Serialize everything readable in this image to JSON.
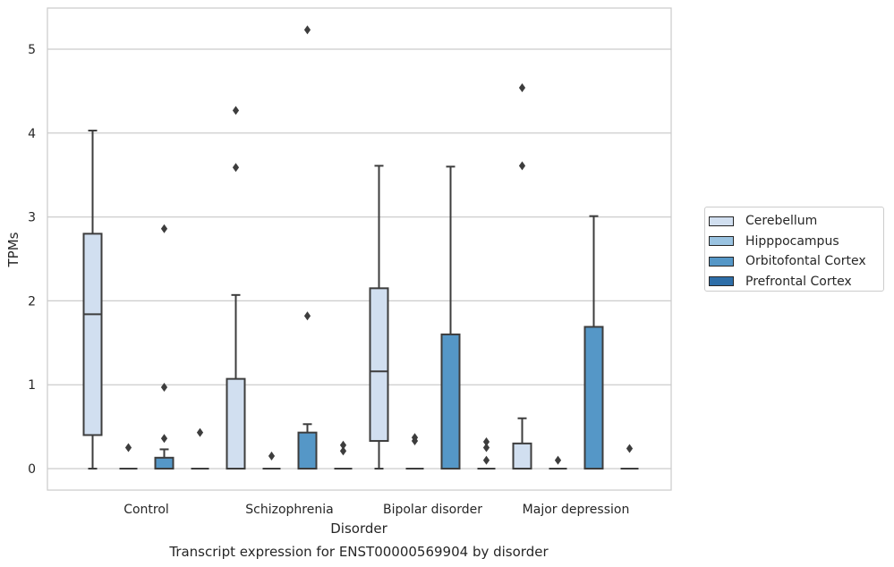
{
  "chart_data": {
    "type": "box",
    "title": "Transcript expression for ENST00000569904 by disorder",
    "xlabel": "Disorder",
    "ylabel": "TPMs",
    "ylim": [
      -0.25,
      5.5
    ],
    "yticks": [
      0,
      1,
      2,
      3,
      4,
      5
    ],
    "grid": "horizontal",
    "legend_position": "right",
    "categories": [
      "Control",
      "Schizophrenia",
      "Bipolar disorder",
      "Major depression"
    ],
    "series": [
      {
        "name": "Cerebellum",
        "color": "#d1dff0",
        "boxes": [
          {
            "whisker_low": 0,
            "q1": 0.4,
            "median": 1.84,
            "q3": 2.8,
            "whisker_high": 4.03,
            "outliers": []
          },
          {
            "whisker_low": 0,
            "q1": 0,
            "median": 0,
            "q3": 1.07,
            "whisker_high": 2.07,
            "outliers": [
              3.59,
              4.27
            ]
          },
          {
            "whisker_low": 0,
            "q1": 0.33,
            "median": 1.16,
            "q3": 2.15,
            "whisker_high": 3.61,
            "outliers": []
          },
          {
            "whisker_low": 0,
            "q1": 0,
            "median": 0,
            "q3": 0.3,
            "whisker_high": 0.6,
            "outliers": [
              3.61,
              4.54
            ]
          }
        ]
      },
      {
        "name": "Hipppocampus",
        "color": "#9ac3e1",
        "boxes": [
          {
            "whisker_low": 0,
            "q1": 0,
            "median": 0,
            "q3": 0,
            "whisker_high": 0,
            "outliers": [
              0.25
            ]
          },
          {
            "whisker_low": 0,
            "q1": 0,
            "median": 0,
            "q3": 0,
            "whisker_high": 0,
            "outliers": [
              0.15
            ]
          },
          {
            "whisker_low": 0,
            "q1": 0,
            "median": 0,
            "q3": 0,
            "whisker_high": 0,
            "outliers": [
              0.33,
              0.37
            ]
          },
          {
            "whisker_low": 0,
            "q1": 0,
            "median": 0,
            "q3": 0,
            "whisker_high": 0,
            "outliers": [
              0.1
            ]
          }
        ]
      },
      {
        "name": "Orbitofontal Cortex",
        "color": "#5597c7",
        "boxes": [
          {
            "whisker_low": 0,
            "q1": 0,
            "median": 0,
            "q3": 0.13,
            "whisker_high": 0.23,
            "outliers": [
              0.36,
              0.97,
              2.86
            ]
          },
          {
            "whisker_low": 0,
            "q1": 0,
            "median": 0,
            "q3": 0.43,
            "whisker_high": 0.53,
            "outliers": [
              1.82,
              5.23
            ]
          },
          {
            "whisker_low": 0,
            "q1": 0,
            "median": 0,
            "q3": 1.6,
            "whisker_high": 3.6,
            "outliers": []
          },
          {
            "whisker_low": 0,
            "q1": 0,
            "median": 0,
            "q3": 1.69,
            "whisker_high": 3.01,
            "outliers": []
          }
        ]
      },
      {
        "name": "Prefrontal Cortex",
        "color": "#2e6ea8",
        "boxes": [
          {
            "whisker_low": 0,
            "q1": 0,
            "median": 0,
            "q3": 0,
            "whisker_high": 0,
            "outliers": [
              0.43
            ]
          },
          {
            "whisker_low": 0,
            "q1": 0,
            "median": 0,
            "q3": 0,
            "whisker_high": 0,
            "outliers": [
              0.21,
              0.28
            ]
          },
          {
            "whisker_low": 0,
            "q1": 0,
            "median": 0,
            "q3": 0,
            "whisker_high": 0,
            "outliers": [
              0.1,
              0.25,
              0.32
            ]
          },
          {
            "whisker_low": 0,
            "q1": 0,
            "median": 0,
            "q3": 0,
            "whisker_high": 0,
            "outliers": [
              0.24
            ]
          }
        ]
      }
    ]
  }
}
